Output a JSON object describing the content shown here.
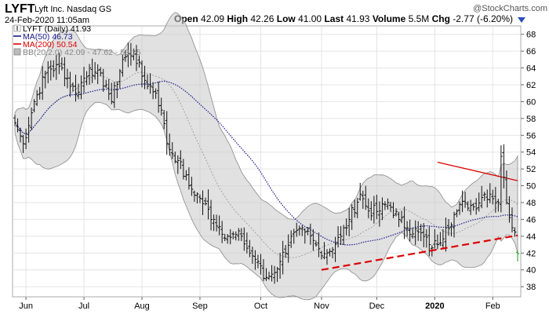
{
  "chart_data": {
    "type": "stock",
    "header": {
      "symbol": "LYFT",
      "company": "Lyft Inc.",
      "exchange": "Nasdaq GS",
      "date": "24-Feb-2020 11:05am",
      "watermark": "@StockCharts.com",
      "quote": [
        {
          "label": "Open",
          "value": "42.09"
        },
        {
          "label": "High",
          "value": "42.26"
        },
        {
          "label": "Low",
          "value": "41.00"
        },
        {
          "label": "Last",
          "value": "41.93"
        },
        {
          "label": "Volume",
          "value": "5.5M"
        },
        {
          "label": "Chg",
          "value": "-2.77 (-6.20%)"
        }
      ]
    },
    "legend": [
      {
        "text": "LYFT (Daily) 41.93",
        "color": "#000000",
        "icon": "ohlc-bar-icon"
      },
      {
        "text": "MA(50) 46.73",
        "color": "#1a1a8c",
        "icon": "line-swatch-icon"
      },
      {
        "text": "MA(200) 50.54",
        "color": "#dd0000",
        "icon": "line-swatch-icon"
      },
      {
        "text": "BB(20,2.0) 42.09 - 47.62 - 53.15",
        "color": "#888888",
        "icon": "band-swatch-icon"
      }
    ],
    "y_axis": {
      "min": 36.8,
      "max": 69.0,
      "ticks": [
        38,
        40,
        42,
        44,
        46,
        48,
        50,
        52,
        54,
        56,
        58,
        60,
        62,
        64,
        66,
        68
      ],
      "side": "right"
    },
    "x_axis": {
      "labels": [
        "Jun",
        "Jul",
        "Aug",
        "Sep",
        "Oct",
        "Nov",
        "Dec",
        "2020",
        "Feb"
      ],
      "label_index": [
        4,
        25,
        46,
        67,
        89,
        111,
        131,
        152,
        173
      ]
    },
    "grid": true,
    "n_bars": 183,
    "close_anchors": [
      [
        0,
        57.5
      ],
      [
        3,
        55
      ],
      [
        7,
        60
      ],
      [
        12,
        64
      ],
      [
        17,
        64
      ],
      [
        22,
        61
      ],
      [
        27,
        64
      ],
      [
        29,
        63.5
      ],
      [
        33,
        62
      ],
      [
        35,
        60
      ],
      [
        39,
        65
      ],
      [
        43,
        66
      ],
      [
        46,
        63
      ],
      [
        51,
        61
      ],
      [
        53,
        59
      ],
      [
        55,
        55
      ],
      [
        59,
        53
      ],
      [
        63,
        50
      ],
      [
        67,
        48.5
      ],
      [
        72,
        46
      ],
      [
        77,
        44
      ],
      [
        82,
        44
      ],
      [
        85,
        42
      ],
      [
        88,
        41
      ],
      [
        90,
        39
      ],
      [
        93,
        39.5
      ],
      [
        96,
        41
      ],
      [
        100,
        44
      ],
      [
        105,
        44.5
      ],
      [
        110,
        42.5
      ],
      [
        113,
        42
      ],
      [
        118,
        44
      ],
      [
        121,
        46
      ],
      [
        125,
        49
      ],
      [
        128,
        47
      ],
      [
        132,
        47
      ],
      [
        135,
        48
      ],
      [
        139,
        46
      ],
      [
        142,
        45
      ],
      [
        146,
        44.5
      ],
      [
        150,
        43
      ],
      [
        153,
        43
      ],
      [
        156,
        45
      ],
      [
        160,
        47
      ],
      [
        163,
        48
      ],
      [
        166,
        47.5
      ],
      [
        170,
        49
      ],
      [
        172,
        49
      ],
      [
        175,
        48
      ],
      [
        176,
        53.5
      ],
      [
        177,
        51
      ],
      [
        178,
        48
      ],
      [
        180,
        45
      ],
      [
        181,
        44.5
      ],
      [
        182,
        41.93
      ]
    ],
    "ma200": {
      "start": [
        153,
        52.8
      ],
      "end": [
        182,
        50.6
      ]
    },
    "trendline": {
      "start": [
        111,
        40.0
      ],
      "end": [
        182,
        44.1
      ],
      "color": "#dd0000"
    }
  }
}
